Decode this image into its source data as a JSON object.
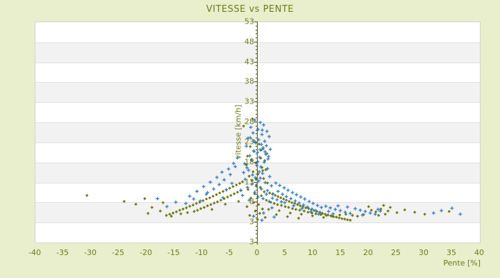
{
  "title": "VITESSE vs PENTE",
  "colors": {
    "background": "#e9eecd",
    "plot_background": "#ffffff",
    "alt_band": "#f2f2f2",
    "gridline": "#e0e0e0",
    "plot_border": "#d2d2d2",
    "axis_line": "#4d521f",
    "text": "#6f7b16",
    "series_blue": "#3d80c4",
    "series_olive": "#6f7a16"
  },
  "chart_data": {
    "type": "scatter",
    "title": "VITESSE vs PENTE",
    "xlabel": "Pente [%]",
    "ylabel": "vitesse [km/h]",
    "xlim": [
      -40,
      40
    ],
    "ylim": [
      3,
      53
    ],
    "x_ticks": [
      -40,
      -35,
      -30,
      -25,
      -20,
      -15,
      -10,
      -5,
      0,
      5,
      10,
      15,
      20,
      25,
      30,
      35,
      40
    ],
    "y_tick_labels": [
      "53",
      "48",
      "43",
      "38",
      "33",
      "28",
      "23",
      "18",
      "13",
      "8",
      "3",
      "3"
    ],
    "y_tick_step": 5,
    "grid": "alternating-horizontal-bands",
    "legend": "none",
    "axis_position": "y-axis-at-x-equals-0",
    "series": [
      {
        "name": "serie-olive",
        "marker": "diamond",
        "color": "#6f7a16",
        "points": [
          [
            -0.8,
            28.7
          ],
          [
            -2.4,
            26.9
          ],
          [
            0.4,
            22.4
          ],
          [
            -1.2,
            21.8
          ],
          [
            1.1,
            21.2
          ],
          [
            -0.5,
            20.6
          ],
          [
            1.8,
            20.0
          ],
          [
            -1.7,
            19.4
          ],
          [
            0.7,
            18.9
          ],
          [
            1.4,
            18.3
          ],
          [
            -0.2,
            17.7
          ],
          [
            -1.9,
            17.2
          ],
          [
            0.9,
            16.6
          ],
          [
            1.6,
            16.0
          ],
          [
            -0.7,
            15.5
          ],
          [
            0.2,
            14.9
          ],
          [
            -1.4,
            14.4
          ],
          [
            1.2,
            13.8
          ],
          [
            -0.9,
            13.3
          ],
          [
            1.9,
            12.7
          ],
          [
            -0.1,
            12.2
          ],
          [
            0.6,
            11.6
          ],
          [
            -1.6,
            11.1
          ],
          [
            1.3,
            10.5
          ],
          [
            -0.4,
            10.0
          ],
          [
            0.8,
            9.5
          ],
          [
            -1.1,
            8.9
          ],
          [
            1.7,
            8.4
          ],
          [
            -0.6,
            7.8
          ],
          [
            0.3,
            7.3
          ],
          [
            -1.8,
            6.8
          ],
          [
            1.0,
            6.2
          ],
          [
            -0.3,
            5.7
          ],
          [
            0.5,
            5.1
          ],
          [
            -1.3,
            4.6
          ],
          [
            1.5,
            4.1
          ],
          [
            0.1,
            3.6
          ],
          [
            -0.95,
            18.6
          ],
          [
            1.05,
            15.8
          ],
          [
            -0.15,
            13.6
          ],
          [
            0.75,
            20.9
          ],
          [
            -2.6,
            13.0
          ],
          [
            -3.1,
            12.6
          ],
          [
            -3.7,
            12.2
          ],
          [
            -4.3,
            11.8
          ],
          [
            -4.9,
            11.4
          ],
          [
            -5.5,
            11.0
          ],
          [
            -6.1,
            10.6
          ],
          [
            -6.7,
            10.2
          ],
          [
            -7.3,
            9.8
          ],
          [
            -7.9,
            9.4
          ],
          [
            -8.5,
            9.0
          ],
          [
            -9.1,
            8.7
          ],
          [
            -9.7,
            8.3
          ],
          [
            -10.3,
            7.9
          ],
          [
            -10.9,
            7.6
          ],
          [
            -11.5,
            7.2
          ],
          [
            -12.1,
            6.9
          ],
          [
            -12.7,
            6.5
          ],
          [
            -13.3,
            6.2
          ],
          [
            -13.9,
            5.9
          ],
          [
            -14.5,
            5.5
          ],
          [
            -15.1,
            5.2
          ],
          [
            -15.7,
            4.9
          ],
          [
            -16.3,
            4.6
          ],
          [
            -2.9,
            10.8
          ],
          [
            -3.5,
            10.4
          ],
          [
            -4.1,
            10.0
          ],
          [
            -4.7,
            9.6
          ],
          [
            -5.3,
            9.2
          ],
          [
            -5.9,
            8.8
          ],
          [
            -6.5,
            8.4
          ],
          [
            -7.1,
            8.0
          ],
          [
            -7.7,
            7.7
          ],
          [
            -8.3,
            7.3
          ],
          [
            -8.9,
            7.0
          ],
          [
            -9.5,
            6.6
          ],
          [
            -10.1,
            6.3
          ],
          [
            -10.7,
            5.9
          ],
          [
            -11.3,
            5.6
          ],
          [
            -12.5,
            5.3
          ],
          [
            -13.7,
            5.0
          ],
          [
            -15.4,
            4.4
          ],
          [
            -3.3,
            8.1
          ],
          [
            -5.7,
            7.4
          ],
          [
            -8.1,
            6.1
          ],
          [
            -30.6,
            9.6
          ],
          [
            -23.9,
            8.1
          ],
          [
            -21.8,
            7.4
          ],
          [
            -20.2,
            8.8
          ],
          [
            -18.9,
            6.6
          ],
          [
            -17.4,
            5.7
          ],
          [
            -19.6,
            5.1
          ],
          [
            -16.9,
            7.8
          ],
          [
            2.3,
            10.2
          ],
          [
            2.8,
            9.9
          ],
          [
            3.3,
            9.6
          ],
          [
            3.8,
            9.3
          ],
          [
            4.3,
            9.0
          ],
          [
            4.8,
            8.7
          ],
          [
            5.3,
            8.4
          ],
          [
            5.8,
            8.1
          ],
          [
            6.3,
            7.8
          ],
          [
            6.8,
            7.6
          ],
          [
            7.3,
            7.3
          ],
          [
            7.8,
            7.0
          ],
          [
            8.3,
            6.8
          ],
          [
            8.8,
            6.5
          ],
          [
            9.3,
            6.3
          ],
          [
            9.8,
            6.0
          ],
          [
            10.3,
            5.8
          ],
          [
            10.8,
            5.6
          ],
          [
            11.3,
            5.4
          ],
          [
            11.8,
            5.1
          ],
          [
            12.3,
            4.9
          ],
          [
            12.8,
            4.7
          ],
          [
            13.3,
            4.5
          ],
          [
            13.8,
            4.3
          ],
          [
            14.3,
            4.2
          ],
          [
            14.8,
            4.0
          ],
          [
            15.3,
            3.8
          ],
          [
            15.8,
            3.7
          ],
          [
            16.3,
            3.5
          ],
          [
            16.8,
            3.4
          ],
          [
            2.5,
            7.9
          ],
          [
            3.1,
            7.6
          ],
          [
            3.7,
            7.3
          ],
          [
            4.4,
            7.1
          ],
          [
            5.1,
            6.8
          ],
          [
            5.7,
            6.6
          ],
          [
            6.4,
            6.3
          ],
          [
            7.0,
            6.1
          ],
          [
            7.7,
            5.9
          ],
          [
            8.5,
            5.7
          ],
          [
            9.2,
            5.4
          ],
          [
            9.9,
            5.2
          ],
          [
            10.6,
            5.0
          ],
          [
            11.5,
            4.8
          ],
          [
            12.5,
            4.6
          ],
          [
            13.5,
            4.4
          ],
          [
            14.9,
            4.7
          ],
          [
            16.0,
            4.9
          ],
          [
            17.2,
            4.6
          ],
          [
            18.1,
            4.4
          ],
          [
            19.2,
            4.8
          ],
          [
            4.0,
            5.8
          ],
          [
            6.0,
            5.2
          ],
          [
            8.0,
            4.9
          ],
          [
            10.0,
            4.5
          ],
          [
            12.0,
            4.1
          ],
          [
            3.5,
            4.8
          ],
          [
            5.5,
            4.3
          ],
          [
            7.5,
            3.9
          ],
          [
            2.1,
            6.1
          ],
          [
            20.6,
            5.9
          ],
          [
            21.4,
            5.5
          ],
          [
            22.3,
            6.2
          ],
          [
            23.1,
            4.9
          ],
          [
            24.0,
            6.6
          ],
          [
            25.2,
            5.3
          ],
          [
            21.9,
            4.6
          ],
          [
            23.6,
            5.7
          ],
          [
            20.1,
            6.8
          ],
          [
            34.6,
            5.6
          ],
          [
            30.2,
            4.9
          ],
          [
            28.4,
            5.4
          ],
          [
            26.6,
            6.0
          ],
          [
            22.8,
            7.1
          ]
        ]
      },
      {
        "name": "serie-bleue",
        "marker": "plus",
        "color": "#3d80c4",
        "points": [
          [
            -0.4,
            28.4
          ],
          [
            0.6,
            27.8
          ],
          [
            1.2,
            27.2
          ],
          [
            -1.1,
            26.6
          ],
          [
            0.2,
            26.1
          ],
          [
            1.8,
            25.6
          ],
          [
            -0.7,
            25.2
          ],
          [
            0.9,
            24.8
          ],
          [
            2.2,
            24.3
          ],
          [
            -1.6,
            23.9
          ],
          [
            0.3,
            23.5
          ],
          [
            1.4,
            23.1
          ],
          [
            -0.2,
            22.7
          ],
          [
            0.8,
            22.3
          ],
          [
            -1.9,
            21.9
          ],
          [
            1.1,
            21.5
          ],
          [
            2.4,
            21.1
          ],
          [
            -0.6,
            20.7
          ],
          [
            0.1,
            20.3
          ],
          [
            1.6,
            19.9
          ],
          [
            -1.3,
            19.5
          ],
          [
            0.5,
            19.1
          ],
          [
            2.0,
            18.7
          ],
          [
            -0.9,
            18.3
          ],
          [
            1.3,
            17.9
          ],
          [
            -2.2,
            17.5
          ],
          [
            0.0,
            17.1
          ],
          [
            0.7,
            16.7
          ],
          [
            1.9,
            16.3
          ],
          [
            -1.5,
            15.9
          ],
          [
            0.4,
            15.5
          ],
          [
            1.0,
            15.1
          ],
          [
            -0.8,
            14.7
          ],
          [
            2.3,
            14.3
          ],
          [
            -0.3,
            14.0
          ],
          [
            1.7,
            22.0
          ],
          [
            -1.2,
            24.0
          ],
          [
            0.55,
            21.0
          ],
          [
            2.1,
            19.3
          ],
          [
            -1.8,
            16.5
          ],
          [
            0.15,
            18.0
          ],
          [
            1.45,
            20.5
          ],
          [
            -2.4,
            15.3
          ],
          [
            0.95,
            25.9
          ],
          [
            -0.55,
            23.2
          ],
          [
            -2.1,
            13.6
          ],
          [
            0.3,
            13.2
          ],
          [
            1.5,
            12.8
          ],
          [
            -0.9,
            12.4
          ],
          [
            2.6,
            12.0
          ],
          [
            -1.7,
            11.6
          ],
          [
            0.8,
            11.2
          ],
          [
            1.9,
            10.8
          ],
          [
            -0.4,
            10.4
          ],
          [
            2.9,
            10.0
          ],
          [
            -2.6,
            9.6
          ],
          [
            0.2,
            9.2
          ],
          [
            1.1,
            8.8
          ],
          [
            -1.4,
            8.4
          ],
          [
            2.2,
            8.1
          ],
          [
            0.6,
            13.9
          ],
          [
            -0.1,
            11.9
          ],
          [
            1.7,
            9.9
          ],
          [
            -2.9,
            10.9
          ],
          [
            2.8,
            8.9
          ],
          [
            -3.5,
            19.0
          ],
          [
            -4.2,
            17.6
          ],
          [
            -5.1,
            16.2
          ],
          [
            -6.3,
            15.4
          ],
          [
            -7.2,
            14.1
          ],
          [
            -8.4,
            12.9
          ],
          [
            -9.6,
            11.8
          ],
          [
            -10.8,
            10.6
          ],
          [
            -12.1,
            9.4
          ],
          [
            -4.8,
            14.8
          ],
          [
            -5.9,
            13.5
          ],
          [
            -7.8,
            11.2
          ],
          [
            -3.9,
            16.8
          ],
          [
            -6.8,
            12.3
          ],
          [
            -9.1,
            9.9
          ],
          [
            -11.4,
            8.7
          ],
          [
            -4.5,
            12.6
          ],
          [
            -8.9,
            10.3
          ],
          [
            -5.5,
            11.0
          ],
          [
            -10.2,
            8.2
          ],
          [
            -12.8,
            7.6
          ],
          [
            -6.1,
            9.0
          ],
          [
            3.4,
            12.7
          ],
          [
            4.1,
            12.1
          ],
          [
            4.9,
            11.5
          ],
          [
            5.6,
            10.9
          ],
          [
            6.4,
            10.3
          ],
          [
            7.1,
            9.8
          ],
          [
            7.9,
            9.2
          ],
          [
            8.6,
            8.7
          ],
          [
            9.4,
            8.1
          ],
          [
            10.1,
            7.6
          ],
          [
            10.9,
            7.1
          ],
          [
            11.6,
            6.6
          ],
          [
            3.8,
            10.6
          ],
          [
            4.6,
            9.9
          ],
          [
            5.3,
            9.3
          ],
          [
            6.1,
            8.8
          ],
          [
            6.9,
            8.2
          ],
          [
            7.6,
            7.7
          ],
          [
            8.4,
            7.2
          ],
          [
            9.1,
            6.7
          ],
          [
            9.9,
            6.2
          ],
          [
            10.6,
            5.8
          ],
          [
            11.4,
            5.3
          ],
          [
            3.6,
            8.5
          ],
          [
            5.0,
            7.8
          ],
          [
            6.6,
            7.0
          ],
          [
            8.1,
            6.3
          ],
          [
            9.7,
            5.5
          ],
          [
            11.1,
            4.9
          ],
          [
            4.4,
            8.0
          ],
          [
            12.4,
            6.9
          ],
          [
            13.2,
            6.5
          ],
          [
            14.1,
            6.1
          ],
          [
            15.0,
            5.8
          ],
          [
            15.9,
            5.4
          ],
          [
            16.8,
            5.1
          ],
          [
            17.7,
            6.3
          ],
          [
            18.6,
            5.9
          ],
          [
            19.5,
            5.6
          ],
          [
            20.4,
            5.2
          ],
          [
            21.3,
            4.9
          ],
          [
            22.2,
            5.7
          ],
          [
            13.7,
            5.0
          ],
          [
            16.3,
            6.7
          ],
          [
            19.0,
            4.7
          ],
          [
            21.8,
            6.1
          ],
          [
            14.6,
            7.0
          ],
          [
            12.9,
            5.6
          ],
          [
            33.2,
            5.8
          ],
          [
            35.1,
            6.4
          ],
          [
            36.6,
            4.9
          ],
          [
            31.8,
            5.2
          ],
          [
            -14.6,
            7.9
          ],
          [
            -16.2,
            6.8
          ],
          [
            -17.9,
            8.8
          ],
          [
            2.7,
            6.5
          ],
          [
            1.2,
            5.2
          ],
          [
            -0.6,
            4.4
          ],
          [
            0.9,
            3.4
          ],
          [
            3.1,
            4.2
          ]
        ]
      }
    ]
  }
}
